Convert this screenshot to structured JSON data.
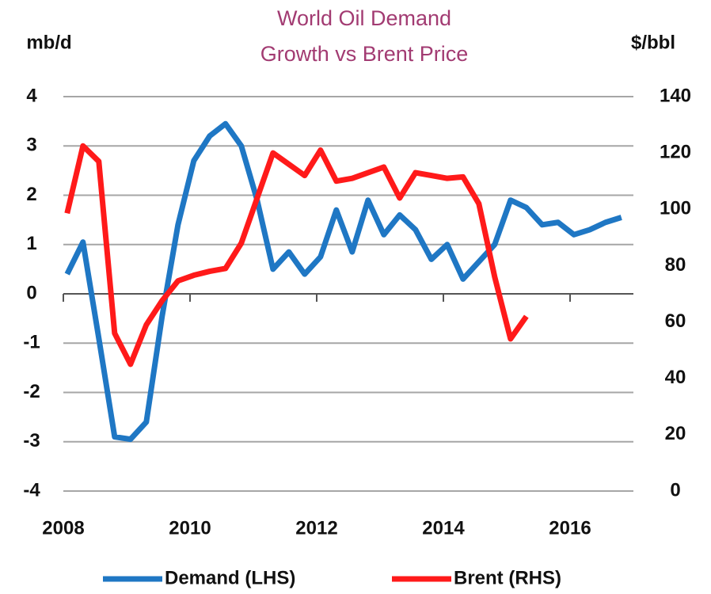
{
  "chart_data": {
    "type": "line",
    "title": [
      "World Oil Demand",
      "Growth vs Brent Price"
    ],
    "y_label": "mb/d",
    "y2_label": "$/bbl",
    "x": [
      2008.06,
      2008.31,
      2008.56,
      2008.81,
      2009.06,
      2009.31,
      2009.56,
      2009.81,
      2010.06,
      2010.31,
      2010.56,
      2010.81,
      2011.06,
      2011.31,
      2011.56,
      2011.81,
      2012.06,
      2012.31,
      2012.56,
      2012.81,
      2013.06,
      2013.31,
      2013.56,
      2013.81,
      2014.06,
      2014.31,
      2014.56,
      2014.81,
      2015.06,
      2015.31,
      2015.56,
      2015.81,
      2016.06,
      2016.31,
      2016.56,
      2016.81
    ],
    "series": [
      {
        "name": "Demand (LHS)",
        "color": "#1f77c4",
        "axis": "y",
        "values": [
          0.4,
          1.05,
          -0.9,
          -2.9,
          -2.95,
          -2.6,
          -0.45,
          1.4,
          2.7,
          3.2,
          3.45,
          3.0,
          1.9,
          0.5,
          0.85,
          0.4,
          0.75,
          1.7,
          0.85,
          1.9,
          1.2,
          1.6,
          1.3,
          0.7,
          1.0,
          0.3,
          0.65,
          1.0,
          1.9,
          1.75,
          1.4,
          1.45,
          1.2,
          1.3,
          1.45,
          1.55
        ]
      },
      {
        "name": "Brent (RHS)",
        "color": "#ff1a1a",
        "axis": "y2",
        "values": [
          98.6,
          122.5,
          117,
          56,
          45,
          59,
          67.6,
          74.6,
          76.6,
          78,
          79,
          88,
          104,
          120,
          116,
          112,
          121,
          110,
          111,
          113,
          115,
          104,
          113,
          112,
          111,
          111.5,
          102,
          76,
          54,
          62,
          null,
          null,
          null,
          null,
          null,
          null
        ]
      }
    ],
    "xlim": [
      2008,
      2017
    ],
    "xticks": [
      2008,
      2010,
      2012,
      2014,
      2016
    ],
    "ylim": [
      -4,
      4
    ],
    "yticks": [
      -4,
      -3,
      -2,
      -1,
      0,
      1,
      2,
      3,
      4
    ],
    "y2lim": [
      0,
      140
    ],
    "y2ticks": [
      0,
      20,
      40,
      60,
      80,
      100,
      120,
      140
    ],
    "grid": true
  }
}
